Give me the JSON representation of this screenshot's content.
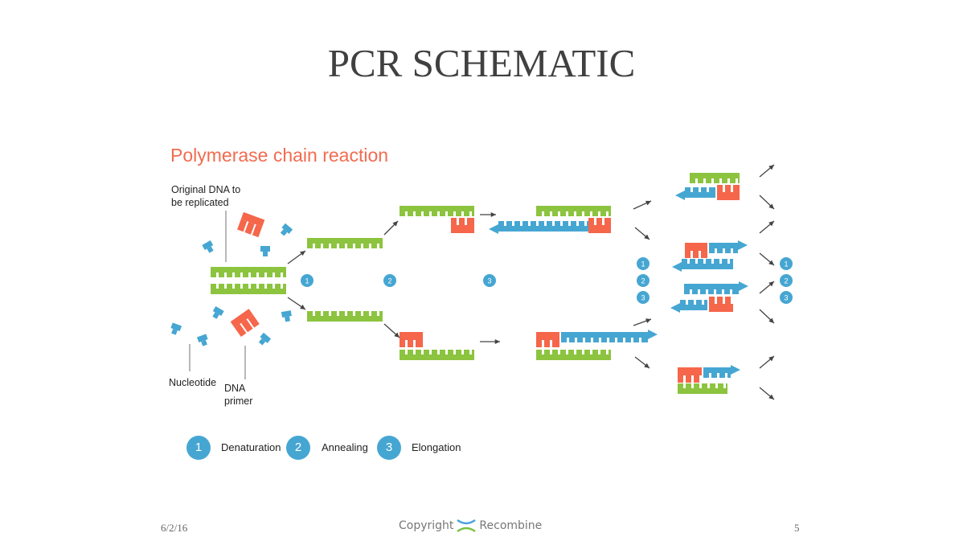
{
  "slide": {
    "title": "PCR SCHEMATIC",
    "date": "6/2/16",
    "page_number": "5",
    "footer": {
      "copyright": "Copyright",
      "brand": "Recombine",
      "logo_colors": [
        "#4aa3df",
        "#f5a623",
        "#7ac143",
        "#e8433a"
      ]
    }
  },
  "diagram": {
    "title": "Polymerase chain reaction",
    "labels": {
      "original_dna_line1": "Original DNA to",
      "original_dna_line2": "be replicated",
      "nucleotide": "Nucleotide",
      "primer_line1": "DNA",
      "primer_line2": "primer"
    },
    "step_markers": [
      "1",
      "2",
      "3"
    ],
    "legend": [
      {
        "number": "1",
        "label": "Denaturation"
      },
      {
        "number": "2",
        "label": "Annealing"
      },
      {
        "number": "3",
        "label": "Elongation"
      }
    ],
    "colors": {
      "template_strand": "#8cc43f",
      "new_strand": "#46a6d2",
      "primer": "#f5664a",
      "arrow": "#444444",
      "step_circle": "#46a6d2"
    }
  }
}
